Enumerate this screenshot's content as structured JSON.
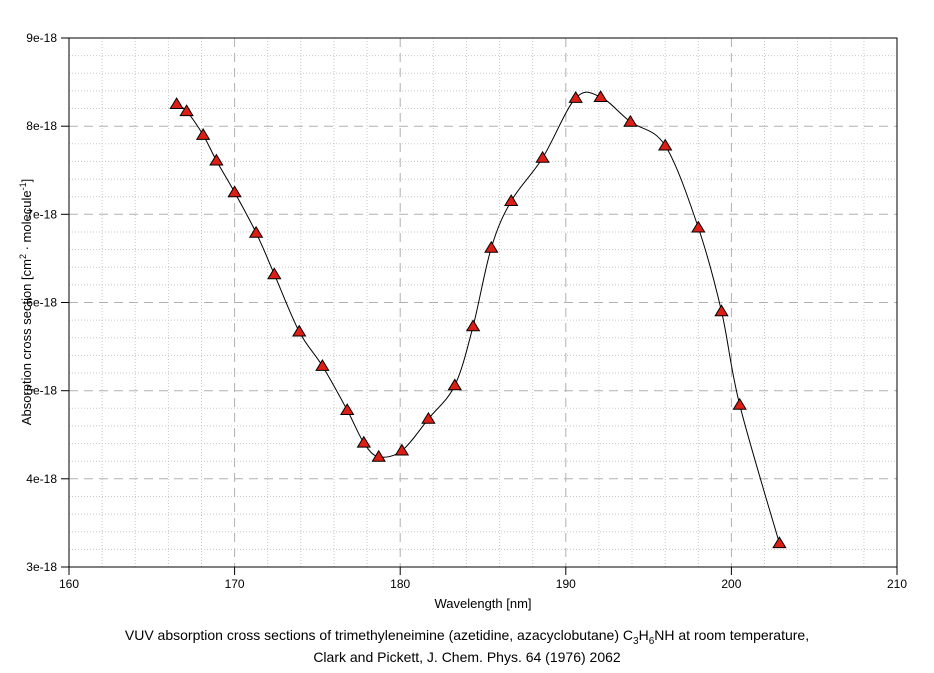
{
  "chart_data": {
    "type": "line",
    "title": "",
    "xlabel": "Wavelength [nm]",
    "ylabel_parts": {
      "pre": "Absorption cross section [cm",
      "sup1": "2",
      "mid": " · molecule",
      "sup2": "-1",
      "post": "]"
    },
    "xlim": [
      160,
      210
    ],
    "ylim": [
      3e-18,
      9e-18
    ],
    "x_major_ticks": [
      160,
      170,
      180,
      190,
      200,
      210
    ],
    "x_tick_labels": [
      "160",
      "170",
      "180",
      "190",
      "200",
      "210"
    ],
    "x_minor_step": 2,
    "y_major_ticks": [
      3e-18,
      4e-18,
      5e-18,
      6e-18,
      7e-18,
      8e-18,
      9e-18
    ],
    "y_tick_labels": [
      "3e-18",
      "4e-18",
      "5e-18",
      "6e-18",
      "7e-18",
      "8e-18",
      "9e-18"
    ],
    "y_minor_step": 2e-19,
    "grid": true,
    "legend": "none",
    "series": [
      {
        "name": "VUV absorption cross section of trimethyleneimine",
        "marker": "triangle-up",
        "x": [
          166.5,
          167.1,
          168.1,
          168.9,
          170.0,
          171.3,
          172.4,
          173.9,
          175.3,
          176.8,
          177.8,
          178.7,
          180.1,
          181.7,
          183.3,
          184.4,
          185.5,
          186.7,
          188.6,
          190.6,
          192.1,
          193.9,
          196.0,
          198.0,
          199.4,
          200.5,
          202.9
        ],
        "y": [
          8.25e-18,
          8.17e-18,
          7.9e-18,
          7.61e-18,
          7.25e-18,
          6.79e-18,
          6.32e-18,
          5.67e-18,
          5.28e-18,
          4.78e-18,
          4.41e-18,
          4.25e-18,
          4.32e-18,
          4.68e-18,
          5.06e-18,
          5.73e-18,
          6.62e-18,
          7.15e-18,
          7.64e-18,
          8.32e-18,
          8.33e-18,
          8.05e-18,
          7.78e-18,
          6.85e-18,
          5.9e-18,
          4.84e-18,
          3.27e-18
        ]
      }
    ]
  },
  "colors": {
    "line": "#000000",
    "marker_fill": "#dd1e14",
    "marker_edge": "#000000",
    "grid_minor": "#c8c8c8",
    "grid_major": "#b0b0b0",
    "axis": "#000000",
    "background": "#ffffff",
    "text": "#000000"
  },
  "caption": {
    "line1": {
      "pre": "VUV absorption cross sections of trimethyleneimine (azetidine, azacyclobutane) C",
      "sub1": "3",
      "mid": "H",
      "sub2": "6",
      "post": "NH at room temperature,"
    },
    "line2": "Clark and Pickett, J. Chem. Phys. 64 (1976) 2062"
  }
}
